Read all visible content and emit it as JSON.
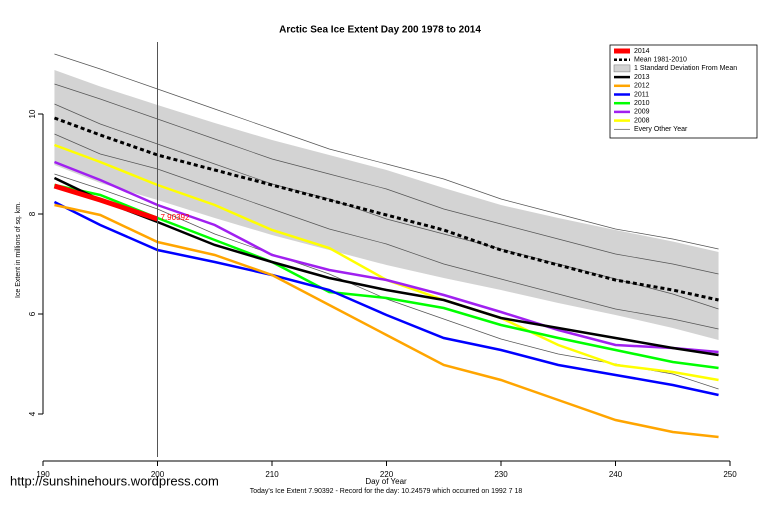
{
  "chart_data": {
    "type": "line",
    "title": "Arctic Sea Ice Extent Day 200 1978 to 2014",
    "x_label": "Day of Year",
    "y_label": "Ice Extent in millions of sq. km.",
    "footer": "Today's Ice Extent  7.90392  - Record for the day:  10.24579  which occurred on  1992 7 18",
    "watermark": "http://sunshinehours.wordpress.com",
    "x": [
      191,
      195,
      200,
      205,
      210,
      215,
      220,
      225,
      230,
      235,
      240,
      245,
      249
    ],
    "xlim": [
      190,
      250
    ],
    "xticks": [
      190,
      200,
      210,
      220,
      230,
      240,
      250
    ],
    "ylim": [
      3.14,
      11.44
    ],
    "yticks": [
      4,
      6,
      8,
      10
    ],
    "marker_day": 200,
    "annotation": "7.90392",
    "legend_position": "top-right",
    "band": {
      "name": "1 Standard Deviation From Mean",
      "color": "#d3d3d3",
      "upper": [
        10.88,
        10.55,
        10.18,
        9.82,
        9.48,
        9.18,
        8.88,
        8.52,
        8.18,
        7.92,
        7.68,
        7.45,
        7.24
      ],
      "lower": [
        8.98,
        8.62,
        8.28,
        7.92,
        7.58,
        7.28,
        6.98,
        6.72,
        6.48,
        6.22,
        5.98,
        5.72,
        5.48
      ]
    },
    "mean": {
      "name": "Mean 1981-2010",
      "color": "#000000",
      "values": [
        9.92,
        9.58,
        9.18,
        8.88,
        8.58,
        8.28,
        7.98,
        7.68,
        7.28,
        6.98,
        6.68,
        6.48,
        6.28
      ]
    },
    "other_years": {
      "name": "Every Other Year",
      "color": "#555555",
      "lines": [
        [
          11.2,
          10.9,
          10.5,
          10.1,
          9.7,
          9.3,
          9.0,
          8.7,
          8.3,
          8.0,
          7.7,
          7.5,
          7.3
        ],
        [
          10.6,
          10.3,
          9.9,
          9.5,
          9.1,
          8.8,
          8.5,
          8.1,
          7.8,
          7.5,
          7.2,
          7.0,
          6.8
        ],
        [
          10.2,
          9.8,
          9.4,
          9.0,
          8.6,
          8.3,
          7.9,
          7.6,
          7.3,
          7.0,
          6.7,
          6.4,
          6.1
        ],
        [
          9.6,
          9.2,
          8.9,
          8.5,
          8.1,
          7.7,
          7.4,
          7.0,
          6.7,
          6.4,
          6.1,
          5.9,
          5.7
        ],
        [
          8.8,
          8.5,
          8.1,
          7.6,
          7.2,
          6.8,
          6.3,
          5.9,
          5.5,
          5.2,
          5.0,
          4.8,
          4.5
        ]
      ]
    },
    "series": [
      {
        "name": "2014",
        "color": "#ff0000",
        "values": [
          8.56,
          8.28,
          7.9,
          null,
          null,
          null,
          null,
          null,
          null,
          null,
          null,
          null,
          null
        ]
      },
      {
        "name": "2013",
        "color": "#000000",
        "values": [
          8.72,
          8.28,
          7.84,
          7.38,
          7.04,
          6.72,
          6.48,
          6.28,
          5.92,
          5.72,
          5.52,
          5.32,
          5.18
        ]
      },
      {
        "name": "2012",
        "color": "#ffa500",
        "values": [
          8.18,
          7.98,
          7.44,
          7.18,
          6.78,
          6.18,
          5.58,
          4.98,
          4.68,
          4.28,
          3.88,
          3.64,
          3.54
        ]
      },
      {
        "name": "2011",
        "color": "#0000ff",
        "values": [
          8.24,
          7.78,
          7.28,
          7.04,
          6.78,
          6.48,
          5.98,
          5.52,
          5.28,
          4.98,
          4.78,
          4.58,
          4.38
        ]
      },
      {
        "name": "2010",
        "color": "#00ff00",
        "values": [
          8.58,
          8.38,
          7.92,
          7.48,
          7.04,
          6.44,
          6.32,
          6.12,
          5.78,
          5.52,
          5.28,
          5.04,
          4.92
        ]
      },
      {
        "name": "2009",
        "color": "#a020f0",
        "values": [
          9.04,
          8.68,
          8.18,
          7.78,
          7.18,
          6.88,
          6.68,
          6.38,
          6.04,
          5.68,
          5.38,
          5.32,
          5.24
        ]
      },
      {
        "name": "2008",
        "color": "#ffff00",
        "values": [
          9.38,
          9.04,
          8.58,
          8.18,
          7.68,
          7.32,
          6.68,
          6.28,
          5.92,
          5.38,
          4.98,
          4.84,
          4.68
        ]
      }
    ]
  }
}
